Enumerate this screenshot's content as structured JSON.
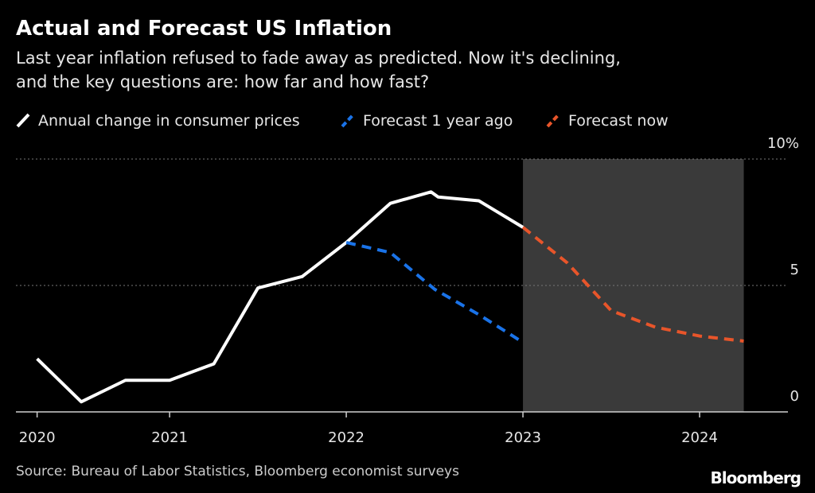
{
  "chart_data": {
    "type": "line",
    "title": "Actual and Forecast US Inflation",
    "subtitle": [
      "Last year inflation refused to fade away as predicted. Now it's declining,",
      "and the key questions are: how far and how fast?"
    ],
    "source": "Source: Bureau of Labor Statistics, Bloomberg economist surveys",
    "brand": "Bloomberg",
    "series": [
      {
        "name": "Annual change in consumer prices",
        "color": "#ffffff",
        "dashed": false,
        "x": [
          2020.25,
          2020.5,
          2020.75,
          2021.0,
          2021.25,
          2021.5,
          2021.75,
          2022.0,
          2022.25,
          2022.48,
          2022.52,
          2022.75,
          2023.0
        ],
        "values": [
          2.1,
          0.4,
          1.25,
          1.25,
          1.9,
          4.9,
          5.35,
          6.7,
          8.25,
          8.7,
          8.5,
          8.35,
          7.3
        ]
      },
      {
        "name": "Forecast 1 year ago",
        "color": "#1a73e8",
        "dashed": true,
        "x": [
          2022.0,
          2022.25,
          2022.5,
          2022.75,
          2023.0
        ],
        "values": [
          6.7,
          6.3,
          4.85,
          3.85,
          2.75
        ]
      },
      {
        "name": "Forecast now",
        "color": "#e8552a",
        "dashed": true,
        "x": [
          2023.0,
          2023.25,
          2023.5,
          2023.75,
          2024.0,
          2024.25
        ],
        "values": [
          7.3,
          5.9,
          4.0,
          3.35,
          3.0,
          2.8
        ]
      }
    ],
    "shade": [
      2023.0,
      2024.25
    ],
    "shade_color": "#3a3a3a",
    "xlim": [
      2020.13,
      2024.5
    ],
    "xticks": [
      {
        "value": 2020.25,
        "label": "2020"
      },
      2021,
      2022,
      2023,
      2024
    ],
    "ylim": [
      0,
      10
    ],
    "yticks": [
      0,
      5,
      {
        "value": 10,
        "label": "10%"
      }
    ],
    "grid": true
  }
}
